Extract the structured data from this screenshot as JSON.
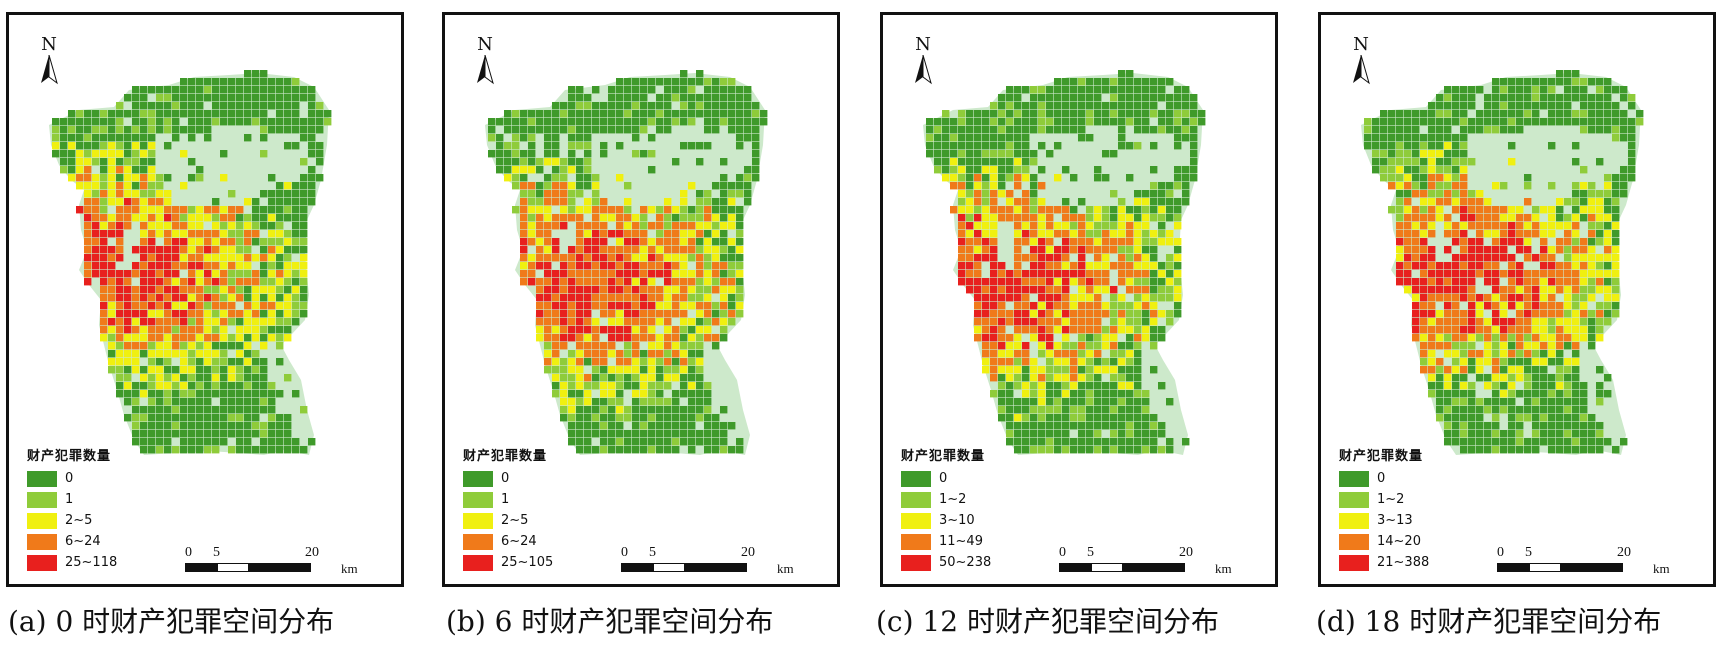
{
  "panels": [
    {
      "id": "a",
      "caption": "(a) 0 时财产犯罪空间分布",
      "legend_title": "财产犯罪数量",
      "classes": [
        "0",
        "1",
        "2~5",
        "6~24",
        "25~118"
      ],
      "hot_center": [
        0.28,
        0.45
      ]
    },
    {
      "id": "b",
      "caption": "(b) 6 时财产犯罪空间分布",
      "legend_title": "财产犯罪数量",
      "classes": [
        "0",
        "1",
        "2~5",
        "6~24",
        "25~105"
      ],
      "hot_center": [
        0.34,
        0.47
      ]
    },
    {
      "id": "c",
      "caption": "(c) 12 时财产犯罪空间分布",
      "legend_title": "财产犯罪数量",
      "classes": [
        "0",
        "1~2",
        "3~10",
        "11~49",
        "50~238"
      ],
      "hot_center": [
        0.3,
        0.47
      ]
    },
    {
      "id": "d",
      "caption": "(d) 18 时财产犯罪空间分布",
      "legend_title": "财产犯罪数量",
      "classes": [
        "0",
        "1~2",
        "3~13",
        "14~20",
        "21~388"
      ],
      "hot_center": [
        0.36,
        0.45
      ]
    }
  ],
  "north_label": "N",
  "scale_bar": {
    "ticks": [
      "0",
      "5",
      "20"
    ],
    "unit": "km"
  },
  "colors": {
    "class_colors": [
      "#3f9a2a",
      "#8fcc3a",
      "#f0f010",
      "#f07a1a",
      "#e8201e"
    ],
    "background_area": "#cde9cb",
    "frame": "#111111"
  },
  "icons": [
    "north-arrow-icon"
  ]
}
